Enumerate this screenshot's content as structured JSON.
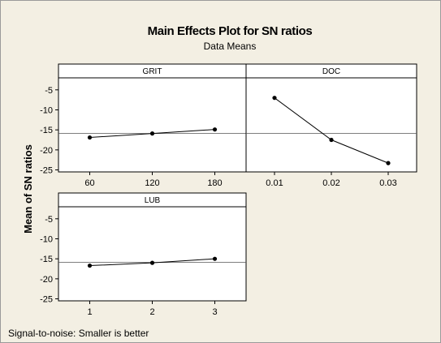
{
  "chart_data": {
    "type": "line",
    "title": "Main Effects Plot for SN ratios",
    "subtitle": "Data Means",
    "ylabel": "Mean of SN ratios",
    "ylim": [
      -25.5,
      -2
    ],
    "yticks": [
      "-5",
      "-10",
      "-15",
      "-20",
      "-25"
    ],
    "ytick_values": [
      -5,
      -10,
      -15,
      -20,
      -25
    ],
    "reference_mean": -15.9,
    "grid": false,
    "footnote": "Signal-to-noise: Smaller is better",
    "panels": [
      {
        "name": "GRIT",
        "categories": [
          "60",
          "120",
          "180"
        ],
        "values": [
          -16.9,
          -15.9,
          -14.9
        ]
      },
      {
        "name": "DOC",
        "categories": [
          "0.01",
          "0.02",
          "0.03"
        ],
        "values": [
          -7.0,
          -17.5,
          -23.3
        ]
      },
      {
        "name": "LUB",
        "categories": [
          "1",
          "2",
          "3"
        ],
        "values": [
          -16.7,
          -16.0,
          -15.0
        ]
      }
    ],
    "colors": {
      "background": "#f3efe3",
      "panel": "#ffffff",
      "line": "#000000"
    }
  }
}
